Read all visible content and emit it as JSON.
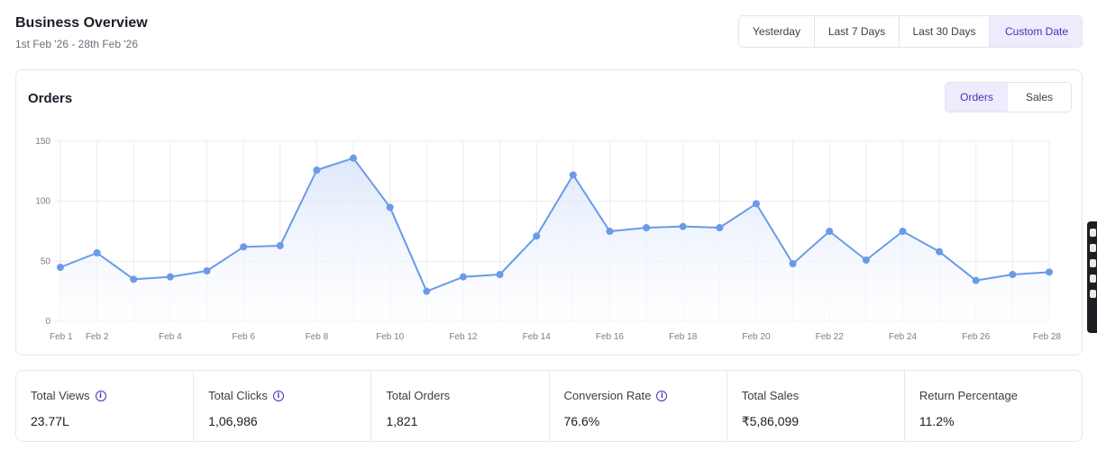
{
  "header": {
    "title": "Business Overview",
    "date_range": "1st Feb '26 - 28th Feb '26"
  },
  "date_filter": {
    "options": [
      "Yesterday",
      "Last 7 Days",
      "Last 30 Days",
      "Custom Date"
    ],
    "selected": "Custom Date"
  },
  "chart_card": {
    "title": "Orders",
    "toggle": {
      "options": [
        "Orders",
        "Sales"
      ],
      "selected": "Orders"
    }
  },
  "chart_data": {
    "type": "area",
    "title": "Orders",
    "x": [
      "Feb 1",
      "Feb 2",
      "Feb 3",
      "Feb 4",
      "Feb 5",
      "Feb 6",
      "Feb 7",
      "Feb 8",
      "Feb 9",
      "Feb 10",
      "Feb 11",
      "Feb 12",
      "Feb 13",
      "Feb 14",
      "Feb 15",
      "Feb 16",
      "Feb 17",
      "Feb 18",
      "Feb 19",
      "Feb 20",
      "Feb 21",
      "Feb 22",
      "Feb 23",
      "Feb 24",
      "Feb 25",
      "Feb 26",
      "Feb 27",
      "Feb 28"
    ],
    "x_tick_labels": [
      "Feb 1",
      "Feb 2",
      "Feb 4",
      "Feb 6",
      "Feb 8",
      "Feb 10",
      "Feb 12",
      "Feb 14",
      "Feb 16",
      "Feb 18",
      "Feb 20",
      "Feb 22",
      "Feb 24",
      "Feb 26",
      "Feb 28"
    ],
    "values": [
      45,
      57,
      35,
      37,
      42,
      62,
      63,
      126,
      136,
      95,
      25,
      37,
      39,
      71,
      122,
      75,
      78,
      79,
      78,
      98,
      48,
      75,
      51,
      75,
      58,
      34,
      39,
      41
    ],
    "y_ticks": [
      0,
      50,
      100,
      150
    ],
    "ylim": [
      0,
      150
    ],
    "grid": true,
    "colors": {
      "line": "#6a9ae8",
      "fill_top": "#dbe6fb",
      "fill_bottom": "#ffffff",
      "grid": "#e9ebf0"
    }
  },
  "stats": [
    {
      "label": "Total Views",
      "value": "23.77L",
      "info": true
    },
    {
      "label": "Total Clicks",
      "value": "1,06,986",
      "info": true
    },
    {
      "label": "Total Orders",
      "value": "1,821",
      "info": false
    },
    {
      "label": "Conversion Rate",
      "value": "76.6%",
      "info": true
    },
    {
      "label": "Total Sales",
      "value": "₹5,86,099",
      "info": false
    },
    {
      "label": "Return Percentage",
      "value": "11.2%",
      "info": false
    }
  ],
  "icons": {
    "info": "info-icon"
  }
}
